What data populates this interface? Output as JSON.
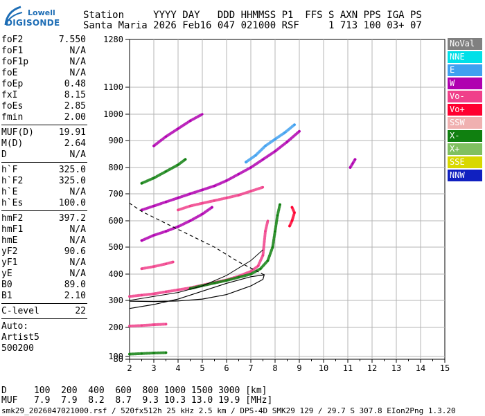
{
  "logo": {
    "line1": "Lowell",
    "line2": "DIGISONDE"
  },
  "header": {
    "line1": "Station     YYYY DAY   DDD HHMMSS P1  FFS S AXN PPS IGA PS",
    "line2": "Santa Maria 2026 Feb16 047 021000 RSF     1 713 100 03+ 07"
  },
  "params": {
    "group1": [
      {
        "k": "foF2",
        "v": "7.550"
      },
      {
        "k": "foF1",
        "v": "N/A"
      },
      {
        "k": "foF1p",
        "v": "N/A"
      },
      {
        "k": "foE",
        "v": "N/A"
      },
      {
        "k": "foEp",
        "v": "0.48"
      },
      {
        "k": "fxI",
        "v": "8.15"
      },
      {
        "k": "foEs",
        "v": "2.85"
      },
      {
        "k": "fmin",
        "v": "2.00"
      }
    ],
    "group2": [
      {
        "k": "MUF(D)",
        "v": "19.91"
      },
      {
        "k": "M(D)",
        "v": "2.64"
      },
      {
        "k": "D",
        "v": "N/A"
      }
    ],
    "group3": [
      {
        "k": "h`F",
        "v": "325.0"
      },
      {
        "k": "h`F2",
        "v": "325.0"
      },
      {
        "k": "h`E",
        "v": "N/A"
      },
      {
        "k": "h`Es",
        "v": "100.0"
      }
    ],
    "group4": [
      {
        "k": "hmF2",
        "v": "397.2"
      },
      {
        "k": "hmF1",
        "v": "N/A"
      },
      {
        "k": "hmE",
        "v": "N/A"
      },
      {
        "k": "yF2",
        "v": "90.6"
      },
      {
        "k": "yF1",
        "v": "N/A"
      },
      {
        "k": "yE",
        "v": "N/A"
      },
      {
        "k": "B0",
        "v": "89.0"
      },
      {
        "k": "B1",
        "v": "2.10"
      }
    ],
    "group5": [
      {
        "k": "C-level",
        "v": "22"
      }
    ],
    "auto": [
      "Auto:",
      "Artist5",
      "500200"
    ]
  },
  "legend": [
    {
      "label": "NoVal",
      "color": "#808080"
    },
    {
      "label": "NNE",
      "color": "#00e0e8"
    },
    {
      "label": "E",
      "color": "#3fa0f0"
    },
    {
      "label": "W",
      "color": "#b000b0"
    },
    {
      "label": "Vo-",
      "color": "#f0408a"
    },
    {
      "label": "Vo+",
      "color": "#ff0030"
    },
    {
      "label": "SSW",
      "color": "#f0b0b0"
    },
    {
      "label": "X-",
      "color": "#108010"
    },
    {
      "label": "X+",
      "color": "#80c060"
    },
    {
      "label": "SSE",
      "color": "#d8d800"
    },
    {
      "label": "NNW",
      "color": "#1020c0"
    }
  ],
  "footer": {
    "d_row": "D     100  200  400  600  800 1000 1500 3000 [km]",
    "muf_row": "MUF   7.9  7.9  8.2  8.7  9.3 10.3 13.0 19.9 [MHz]",
    "status": "smk29_2026047021000.rsf / 520fx512h 25 kHz 2.5 km / DPS-4D SMK29 129 / 29.7 S 307.8 EIon2Png 1.3.20"
  },
  "chart_data": {
    "type": "scatter",
    "xlabel": "",
    "ylabel": "",
    "xlim": [
      2,
      15
    ],
    "ylim": [
      80,
      1280
    ],
    "x_ticks": [
      2,
      3,
      4,
      5,
      6,
      7,
      8,
      9,
      10,
      11,
      12,
      13,
      14,
      15
    ],
    "y_ticks": [
      80,
      100,
      200,
      300,
      400,
      500,
      600,
      700,
      800,
      900,
      1000,
      1100,
      1280
    ],
    "grid": true,
    "series": [
      {
        "color": "#f0408a",
        "points": [
          [
            2.0,
            315
          ],
          [
            2.5,
            320
          ],
          [
            3.0,
            325
          ],
          [
            3.5,
            333
          ],
          [
            4.0,
            340
          ],
          [
            4.5,
            348
          ],
          [
            5.0,
            358
          ],
          [
            5.5,
            368
          ],
          [
            6.0,
            378
          ],
          [
            6.5,
            392
          ],
          [
            7.0,
            410
          ],
          [
            7.3,
            430
          ],
          [
            7.5,
            470
          ],
          [
            7.6,
            560
          ],
          [
            7.7,
            600
          ]
        ]
      },
      {
        "color": "#108010",
        "points": [
          [
            4.5,
            345
          ],
          [
            5.0,
            356
          ],
          [
            5.5,
            366
          ],
          [
            6.0,
            376
          ],
          [
            6.5,
            388
          ],
          [
            7.0,
            400
          ],
          [
            7.4,
            420
          ],
          [
            7.7,
            450
          ],
          [
            7.9,
            500
          ],
          [
            8.0,
            560
          ],
          [
            8.1,
            620
          ],
          [
            8.2,
            660
          ]
        ]
      },
      {
        "color": "#b000b0",
        "points": [
          [
            2.5,
            640
          ],
          [
            3.0,
            655
          ],
          [
            3.5,
            670
          ],
          [
            4.0,
            685
          ],
          [
            4.5,
            700
          ],
          [
            5.0,
            715
          ],
          [
            5.5,
            730
          ],
          [
            6.0,
            750
          ],
          [
            6.5,
            775
          ],
          [
            7.0,
            800
          ],
          [
            7.5,
            830
          ],
          [
            8.0,
            860
          ],
          [
            8.5,
            895
          ],
          [
            9.0,
            935
          ]
        ]
      },
      {
        "color": "#3fa0f0",
        "points": [
          [
            6.8,
            820
          ],
          [
            7.2,
            845
          ],
          [
            7.6,
            880
          ],
          [
            8.0,
            905
          ],
          [
            8.4,
            930
          ],
          [
            8.8,
            960
          ]
        ]
      },
      {
        "color": "#b000b0",
        "points": [
          [
            2.5,
            525
          ],
          [
            3.0,
            545
          ],
          [
            3.5,
            560
          ],
          [
            4.0,
            578
          ],
          [
            4.5,
            600
          ],
          [
            5.0,
            625
          ],
          [
            5.4,
            650
          ]
        ]
      },
      {
        "color": "#f0408a",
        "points": [
          [
            4.0,
            640
          ],
          [
            4.5,
            655
          ],
          [
            5.0,
            665
          ],
          [
            5.5,
            675
          ],
          [
            6.0,
            685
          ],
          [
            6.5,
            695
          ],
          [
            7.0,
            710
          ],
          [
            7.5,
            725
          ]
        ]
      },
      {
        "color": "#108010",
        "points": [
          [
            2.5,
            740
          ],
          [
            3.0,
            760
          ],
          [
            3.5,
            785
          ],
          [
            4.0,
            810
          ],
          [
            4.3,
            830
          ]
        ]
      },
      {
        "color": "#b000b0",
        "points": [
          [
            3.0,
            880
          ],
          [
            3.5,
            915
          ],
          [
            4.0,
            945
          ],
          [
            4.5,
            975
          ],
          [
            5.0,
            1000
          ]
        ]
      },
      {
        "color": "#f0408a",
        "points": [
          [
            2.0,
            205
          ],
          [
            2.5,
            207
          ],
          [
            3.0,
            210
          ],
          [
            3.5,
            212
          ]
        ]
      },
      {
        "color": "#108010",
        "points": [
          [
            2.0,
            108
          ],
          [
            2.5,
            110
          ],
          [
            3.0,
            112
          ],
          [
            3.5,
            113
          ]
        ]
      },
      {
        "color": "#f0408a",
        "points": [
          [
            2.5,
            420
          ],
          [
            3.0,
            428
          ],
          [
            3.5,
            438
          ],
          [
            3.8,
            445
          ]
        ]
      },
      {
        "color": "#ff0030",
        "points": [
          [
            8.6,
            580
          ],
          [
            8.7,
            600
          ],
          [
            8.8,
            630
          ],
          [
            8.7,
            650
          ]
        ]
      },
      {
        "color": "#b000b0",
        "points": [
          [
            11.1,
            800
          ],
          [
            11.2,
            815
          ],
          [
            11.3,
            830
          ]
        ]
      }
    ],
    "profile": [
      [
        2.0,
        270
      ],
      [
        3.0,
        285
      ],
      [
        4.0,
        305
      ],
      [
        5.0,
        335
      ],
      [
        6.0,
        365
      ],
      [
        7.0,
        390
      ],
      [
        7.55,
        397
      ],
      [
        7.5,
        380
      ],
      [
        7.0,
        355
      ],
      [
        6.0,
        322
      ],
      [
        5.0,
        305
      ],
      [
        4.0,
        298
      ],
      [
        3.0,
        296
      ],
      [
        2.0,
        297
      ]
    ],
    "dashed_topside": [
      [
        7.55,
        397
      ],
      [
        6.5,
        445
      ],
      [
        5.5,
        500
      ],
      [
        4.5,
        545
      ],
      [
        3.5,
        590
      ],
      [
        2.5,
        635
      ],
      [
        2.0,
        665
      ]
    ],
    "trace_line": [
      [
        2.0,
        300
      ],
      [
        3.0,
        315
      ],
      [
        4.0,
        330
      ],
      [
        5.0,
        355
      ],
      [
        6.0,
        395
      ],
      [
        7.0,
        450
      ],
      [
        7.5,
        490
      ]
    ]
  }
}
